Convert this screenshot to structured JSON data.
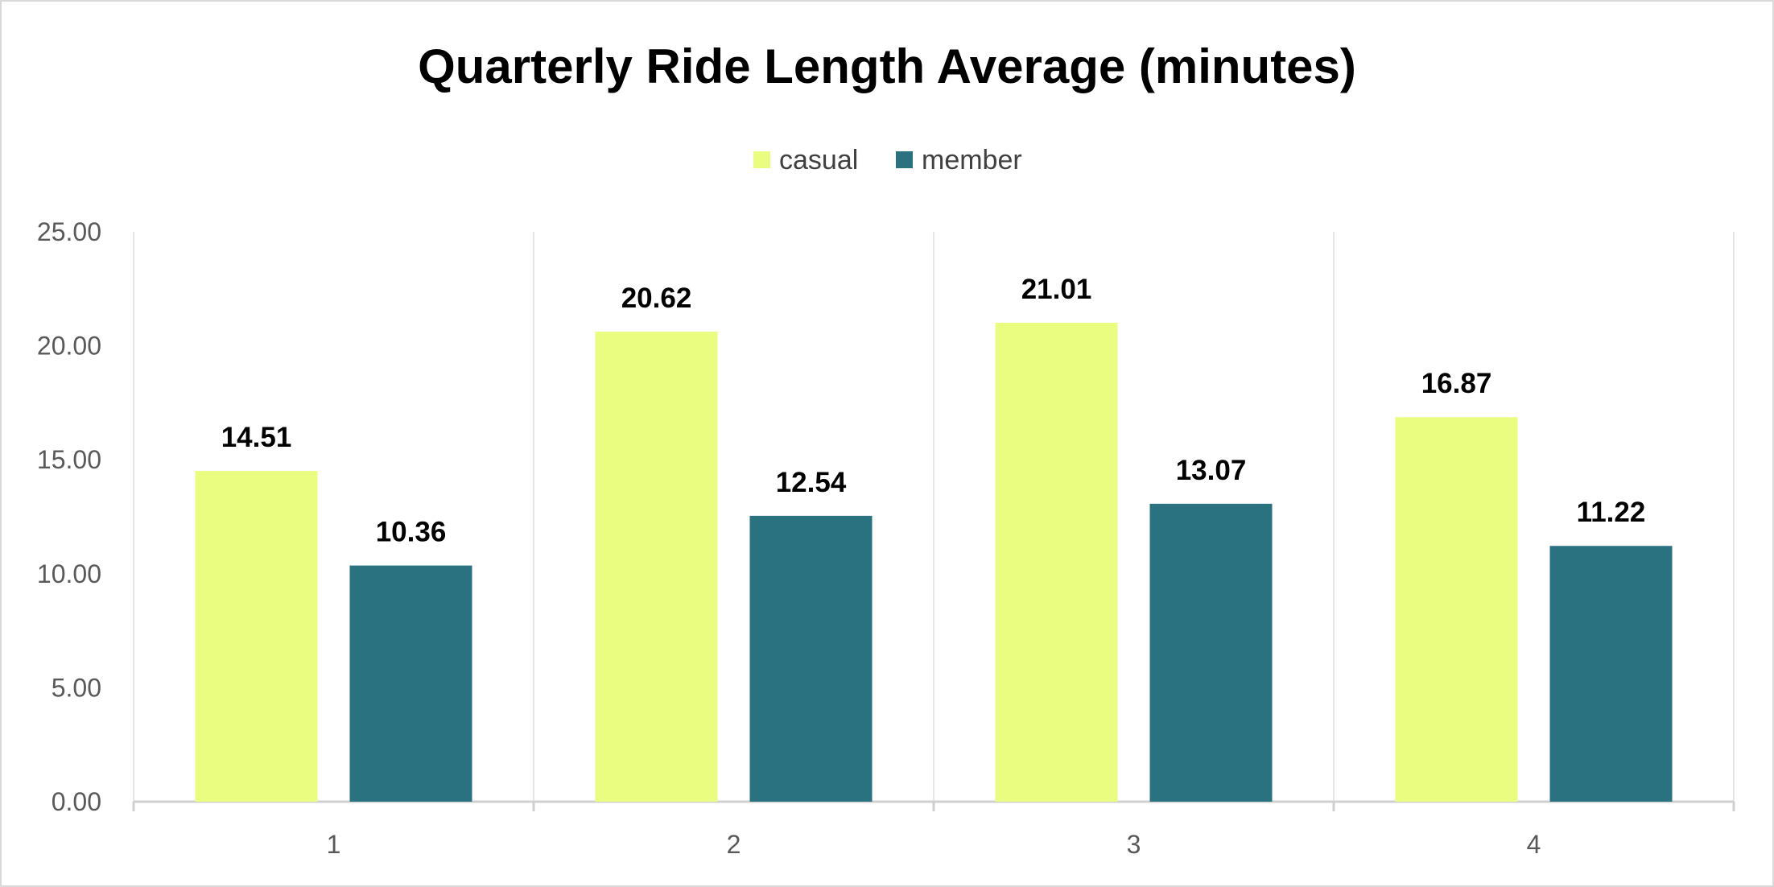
{
  "chart_data": {
    "type": "bar",
    "title": "Quarterly Ride Length Average (minutes)",
    "xlabel": "",
    "ylabel": "",
    "categories": [
      "1",
      "2",
      "3",
      "4"
    ],
    "series": [
      {
        "name": "casual",
        "values": [
          14.51,
          20.62,
          21.01,
          16.87
        ],
        "labels": [
          "14.51",
          "20.62",
          "21.01",
          "16.87"
        ],
        "color": "#EBFD80"
      },
      {
        "name": "member",
        "values": [
          10.36,
          12.54,
          13.07,
          11.22
        ],
        "labels": [
          "10.36",
          "12.54",
          "13.07",
          "11.22"
        ],
        "color": "#2A7280"
      }
    ],
    "ylim": [
      0,
      25
    ],
    "yticks": [
      0,
      5,
      10,
      15,
      20,
      25
    ],
    "ytick_labels": [
      "0.00",
      "5.00",
      "10.00",
      "15.00",
      "20.00",
      "25.00"
    ],
    "grid": "vertical category separators",
    "legend": "top-center"
  }
}
